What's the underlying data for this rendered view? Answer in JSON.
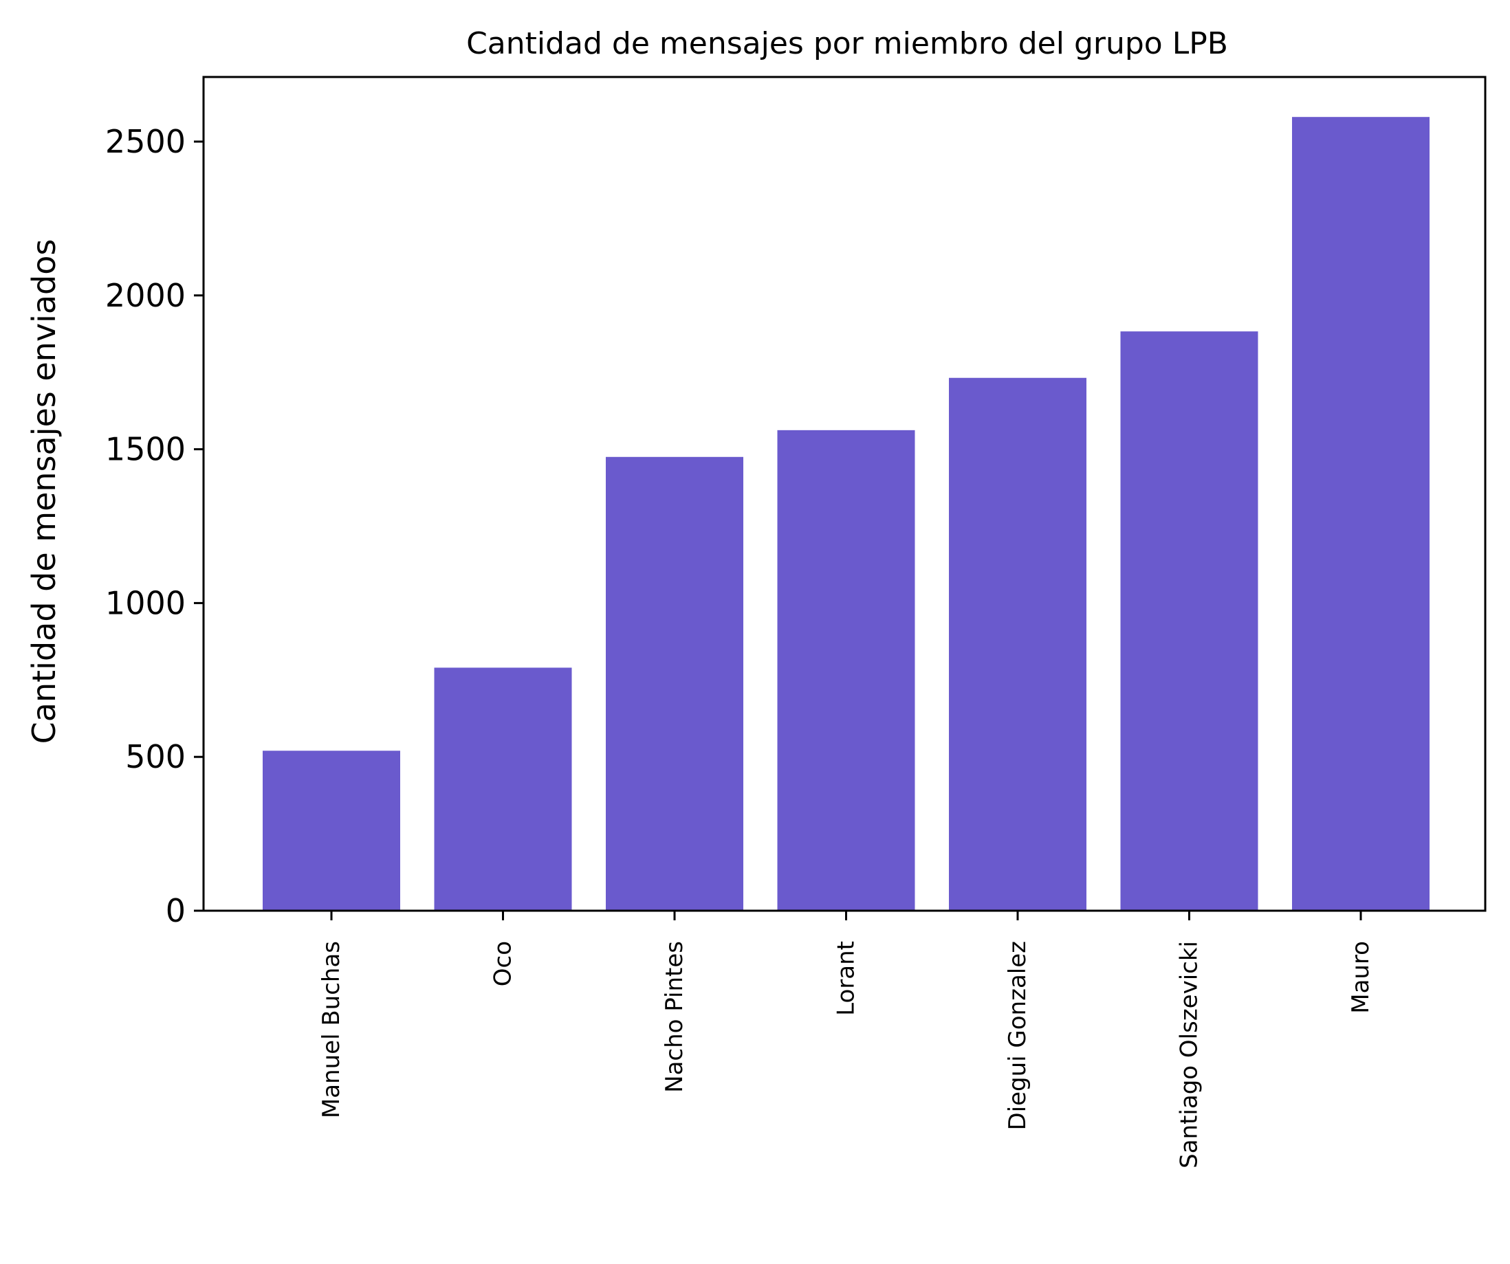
{
  "chart_data": {
    "type": "bar",
    "title": "Cantidad de mensajes por miembro del grupo LPB",
    "xlabel": "",
    "ylabel": "Cantidad de mensajes enviados",
    "categories": [
      "Manuel Buchas",
      "Oco",
      "Nacho Pintes",
      "Lorant",
      "Diegui Gonzalez",
      "Santiago Olszevicki",
      "Mauro"
    ],
    "values": [
      520,
      790,
      1475,
      1562,
      1732,
      1883,
      2580
    ],
    "ylim": [
      0,
      2710
    ],
    "yticks": [
      "0",
      "500",
      "1000",
      "1500",
      "2000",
      "2500"
    ],
    "grid": false,
    "legend": "none",
    "bar_color": "#6a5acd",
    "xtick_rotation": "vertical"
  }
}
